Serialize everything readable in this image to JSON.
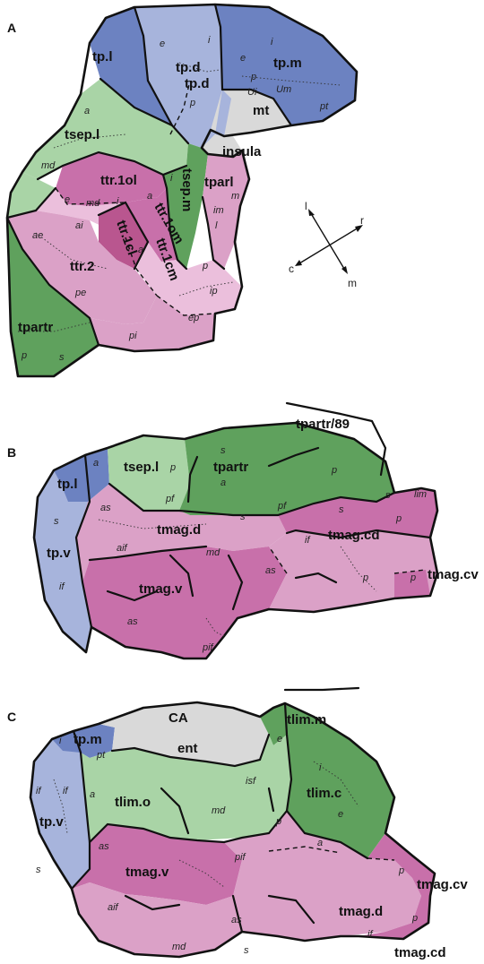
{
  "colors": {
    "temporopolar_blue_dark": "#6c82c1",
    "temporopolar_blue_light": "#a7b4dc",
    "green_dark": "#5fa15d",
    "green_light": "#a9d4a6",
    "green_mid": "#8cc48b",
    "pink_light": "#dba1c7",
    "pink_lighter": "#ebbfdc",
    "magenta": "#c870aa",
    "magenta_dark": "#b9568f",
    "gray": "#d9d9d9"
  },
  "panels": {
    "a": "A",
    "b": "B",
    "c": "C"
  },
  "panel_a": {
    "labels": {
      "tp_l": "tp.l",
      "tp_d1": "tp.d",
      "tp_d2": "tp.d",
      "tp_m": "tp.m",
      "mt": "mt",
      "insula": "insula",
      "tsep_l": "tsep.l",
      "ttr_1ol": "ttr.1ol",
      "tparl": "tparl",
      "tsep_m": "tsep.m",
      "ttr_1om": "ttr.1om",
      "ttr_1cl": "ttr.1cl",
      "ttr_1cm": "ttr.1cm",
      "ttr_2": "ttr.2",
      "tpartr": "tpartr"
    },
    "sublabels": {
      "e1": "e",
      "i1": "i",
      "i2": "i",
      "e2": "e",
      "p1": "p",
      "ui": "Ui",
      "um": "Um",
      "p2": "p",
      "pt": "pt",
      "a1": "a",
      "md1": "md",
      "e3": "e",
      "md2": "md",
      "i3": "i",
      "a2": "a",
      "i4": "i",
      "m": "m",
      "im": "im",
      "l": "l",
      "ai": "ai",
      "ae": "ae",
      "a3": "a",
      "p3": "p",
      "ip": "ip",
      "pe": "pe",
      "ep": "ep",
      "pi": "pi",
      "p4": "p",
      "s": "s"
    },
    "compass": {
      "l": "l",
      "r": "r",
      "c": "c",
      "m": "m"
    }
  },
  "panel_b": {
    "labels": {
      "tpartr89": "tpartr/89",
      "tp_l": "tp.l",
      "tsep_l": "tsep.l",
      "tpartr": "tpartr",
      "tmag_d": "tmag.d",
      "tmag_cd": "tmag.cd",
      "tp_v": "tp.v",
      "tmag_v": "tmag.v",
      "tmag_cv": "tmag.cv"
    },
    "sublabels": {
      "a1": "a",
      "p1": "p",
      "s1": "s",
      "p2": "p",
      "a2": "a",
      "pf1": "pf",
      "pf2": "pf",
      "as1": "as",
      "s2": "s",
      "s3": "s",
      "lim": "lim",
      "s4": "s",
      "s5": "s",
      "if1": "if",
      "p3": "p",
      "aif": "aif",
      "md": "md",
      "if2": "if",
      "as2": "as",
      "p4": "p",
      "p5": "p",
      "as3": "as",
      "pif": "pif"
    }
  },
  "panel_c": {
    "labels": {
      "ca": "CA",
      "ent": "ent",
      "tlim_m": "tlim.m",
      "tp_m": "tp.m",
      "tlim_o": "tlim.o",
      "tlim_c": "tlim.c",
      "tp_v": "tp.v",
      "tmag_v": "tmag.v",
      "tmag_cv": "tmag.cv",
      "tmag_d": "tmag.d",
      "tmag_cd": "tmag.cd"
    },
    "sublabels": {
      "i1": "i",
      "pt": "pt",
      "e1": "e",
      "if1": "if",
      "if2": "if",
      "a1": "a",
      "isf": "isf",
      "i2": "i",
      "md1": "md",
      "p1": "p",
      "e2": "e",
      "s1": "s",
      "as1": "as",
      "pif": "pif",
      "a2": "a",
      "p2": "p",
      "p3": "p",
      "aif": "aif",
      "as2": "as",
      "if3": "if",
      "md2": "md",
      "s2": "s"
    }
  }
}
